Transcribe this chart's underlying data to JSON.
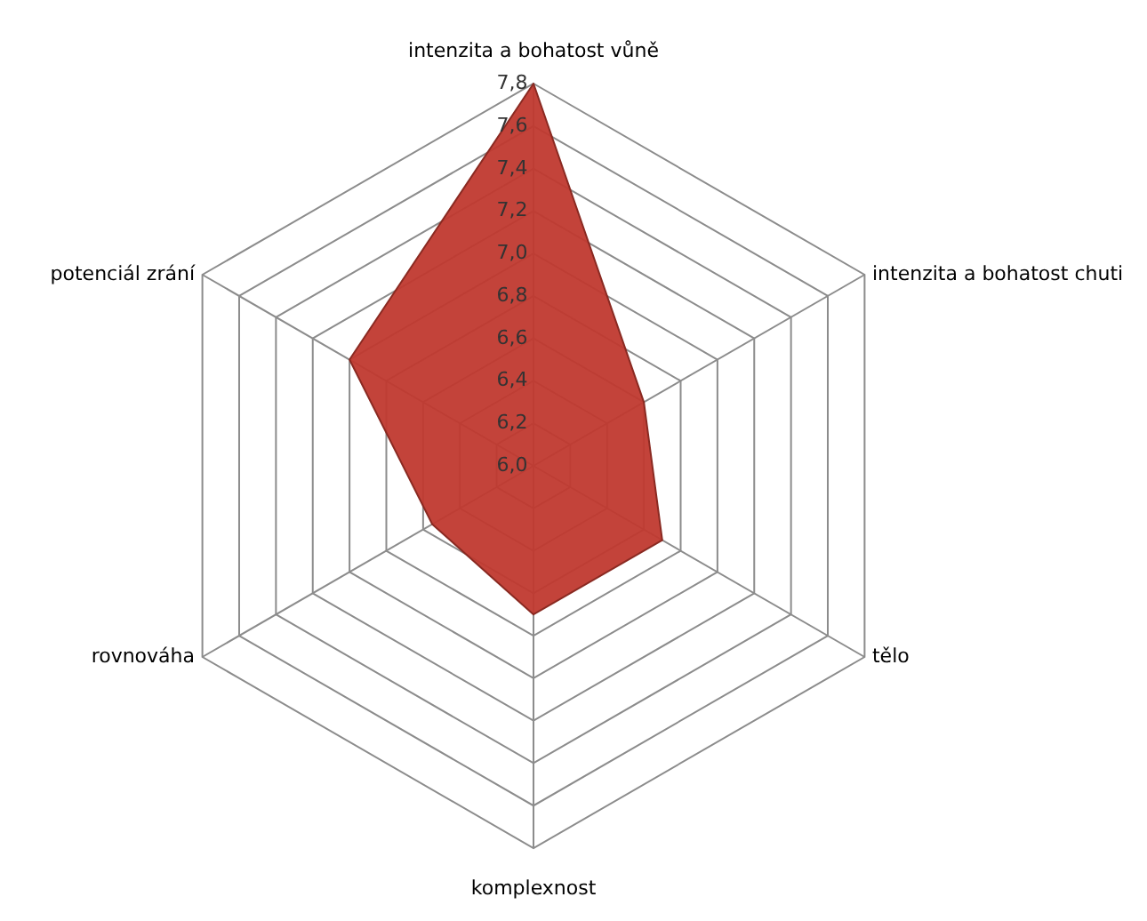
{
  "chart_data": {
    "type": "radar",
    "categories": [
      "intenzita a bohatost vůně",
      "intenzita a bohatost chuti",
      "tělo",
      "komplexnost",
      "rovnováha",
      "potenciál zrání"
    ],
    "series": [
      {
        "color": "#c0392f",
        "values": [
          7.8,
          6.6,
          6.7,
          6.7,
          6.55,
          7.0
        ]
      }
    ],
    "ylim": [
      6.0,
      7.8
    ],
    "yticks": [
      {
        "value": 6.0,
        "label": "6,0"
      },
      {
        "value": 6.2,
        "label": "6,2"
      },
      {
        "value": 6.4,
        "label": "6,4"
      },
      {
        "value": 6.6,
        "label": "6,6"
      },
      {
        "value": 6.8,
        "label": "6,8"
      },
      {
        "value": 7.0,
        "label": "7,0"
      },
      {
        "value": 7.2,
        "label": "7,2"
      },
      {
        "value": 7.4,
        "label": "7,4"
      },
      {
        "value": 7.6,
        "label": "7,6"
      },
      {
        "value": 7.8,
        "label": "7,8"
      }
    ],
    "grid": true
  }
}
